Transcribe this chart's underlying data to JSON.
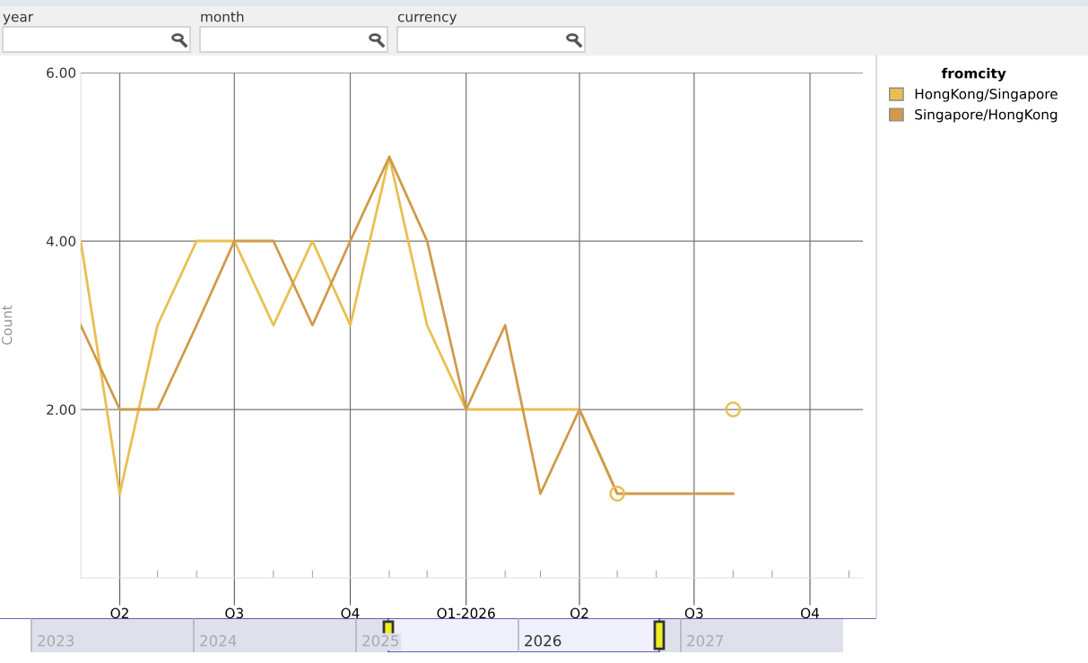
{
  "chart_data": {
    "type": "line",
    "ylabel": "Count",
    "legend_title": "fromcity",
    "legend": "right",
    "grid": true,
    "marker": "none",
    "line_style": "solid",
    "x": [
      "2025-03",
      "2025-04",
      "2025-05",
      "2025-06",
      "2025-07",
      "2025-08",
      "2025-09",
      "2025-10",
      "2025-11",
      "2025-12",
      "2026-01",
      "2026-02",
      "2026-03",
      "2026-04",
      "2026-05",
      "2026-06",
      "2026-07",
      "2026-08"
    ],
    "series": [
      {
        "name": "HongKong/Singapore",
        "color": "#e8bf50",
        "values": [
          4,
          1,
          3,
          4,
          4,
          3,
          4,
          3,
          5,
          3,
          2,
          2,
          2,
          2,
          1,
          null,
          null,
          2
        ]
      },
      {
        "name": "Singapore/HongKong",
        "color": "#d09a4a",
        "values": [
          3,
          2,
          2,
          3,
          4,
          4,
          3,
          4,
          5,
          4,
          2,
          3,
          1,
          2,
          1,
          1,
          1,
          1
        ]
      }
    ],
    "xlim": [
      "2025-03",
      "2026-11-12"
    ],
    "xticks": [
      {
        "value": "2025-04",
        "label": "Q2"
      },
      {
        "value": "2025-05",
        "label": null
      },
      {
        "value": "2025-06",
        "label": null
      },
      {
        "value": "2025-07",
        "label": "Q3"
      },
      {
        "value": "2025-08",
        "label": null
      },
      {
        "value": "2025-09",
        "label": null
      },
      {
        "value": "2025-10",
        "label": "Q4"
      },
      {
        "value": "2025-11",
        "label": null
      },
      {
        "value": "2025-12",
        "label": null
      },
      {
        "value": "2026-01",
        "label": "Q1-2026"
      },
      {
        "value": "2026-02",
        "label": null
      },
      {
        "value": "2026-03",
        "label": null
      },
      {
        "value": "2026-04",
        "label": "Q2"
      },
      {
        "value": "2026-05",
        "label": null
      },
      {
        "value": "2026-06",
        "label": null
      },
      {
        "value": "2026-07",
        "label": "Q3"
      },
      {
        "value": "2026-08",
        "label": null
      },
      {
        "value": "2026-09",
        "label": null
      },
      {
        "value": "2026-10",
        "label": "Q4"
      },
      {
        "value": "2026-11",
        "label": null
      }
    ],
    "ylim": [
      0,
      6
    ],
    "yticks": [
      {
        "value": 2,
        "label": "2.00"
      },
      {
        "value": 4,
        "label": "4.00"
      },
      {
        "value": 6,
        "label": "6.00"
      }
    ],
    "annotations": [
      "year",
      "month",
      "currency",
      "2023",
      "2024",
      "2025",
      "2026",
      "2027"
    ]
  }
}
